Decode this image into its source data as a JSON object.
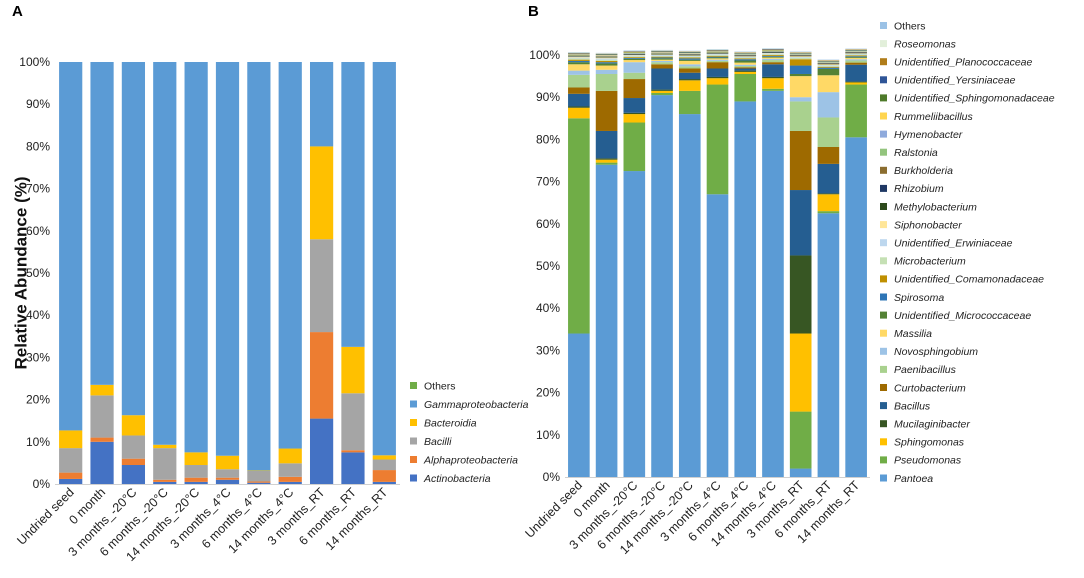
{
  "chart_data": [
    {
      "panel": "A",
      "type": "bar",
      "stacked": true,
      "ylabel": "Relative Abundance (%)",
      "xlabel": "",
      "ylim": [
        0,
        100
      ],
      "yticks": [
        "0%",
        "10%",
        "20%",
        "30%",
        "40%",
        "50%",
        "60%",
        "70%",
        "80%",
        "90%",
        "100%"
      ],
      "categories": [
        "Undried seed",
        "0 month",
        "3 months_-20°C",
        "6 months_-20°C",
        "14 months_-20°C",
        "3 months_4°C",
        "6 months_4°C",
        "14 months_4°C",
        "3 months_RT",
        "6 months_RT",
        "14 months_RT"
      ],
      "legend_position": "right",
      "series": [
        {
          "name": "Actinobacteria",
          "color": "#4472C4",
          "italic": true,
          "values": [
            1.2,
            10,
            4.5,
            0.5,
            0.5,
            1,
            0.3,
            0.5,
            15.5,
            7.5,
            0.5
          ]
        },
        {
          "name": "Alphaproteobacteria",
          "color": "#ED7D31",
          "italic": true,
          "values": [
            1.5,
            1,
            1.5,
            0.5,
            1,
            0.5,
            0.3,
            1.2,
            20.5,
            0.5,
            2.8
          ]
        },
        {
          "name": "Bacilli",
          "color": "#A5A5A5",
          "italic": true,
          "values": [
            5.8,
            10,
            5.5,
            7.5,
            3,
            2,
            2.5,
            3.2,
            22,
            13.5,
            2.5
          ]
        },
        {
          "name": "Bacteroidia",
          "color": "#FFC000",
          "italic": true,
          "values": [
            4.2,
            2.5,
            4.8,
            0.8,
            3,
            3.2,
            0.1,
            3.5,
            22,
            11,
            1
          ]
        },
        {
          "name": "Gammaproteobacteria",
          "color": "#5B9BD5",
          "italic": true,
          "values": [
            87.3,
            76.5,
            83.7,
            90.7,
            92.5,
            93.3,
            96.8,
            91.6,
            20,
            67.5,
            93.2
          ]
        },
        {
          "name": "Others",
          "color": "#70AD47",
          "italic": false,
          "values": [
            0,
            0,
            0,
            0,
            0,
            0,
            0,
            0,
            0,
            0,
            0
          ]
        }
      ]
    },
    {
      "panel": "B",
      "type": "bar",
      "stacked": true,
      "ylabel": "",
      "xlabel": "",
      "ylim": [
        0,
        100
      ],
      "yticks": [
        "0%",
        "10%",
        "20%",
        "30%",
        "40%",
        "50%",
        "60%",
        "70%",
        "80%",
        "90%",
        "100%"
      ],
      "categories": [
        "Undried seed",
        "0 month",
        "3 months_-20°C",
        "6 months_-20°C",
        "14 months_-20°C",
        "3 months_4°C",
        "6 months_4°C",
        "14 months_4°C",
        "3 months_RT",
        "6 months_RT",
        "14 months_RT"
      ],
      "legend_position": "right",
      "series": [
        {
          "name": "Pantoea",
          "color": "#5B9BD5",
          "italic": true,
          "values": [
            34,
            74,
            72.5,
            90.5,
            86,
            67,
            89,
            91.5,
            2,
            62.5,
            80.5
          ]
        },
        {
          "name": "Pseudomonas",
          "color": "#70AD47",
          "italic": true,
          "values": [
            51,
            0.5,
            11.5,
            0.5,
            5.5,
            26,
            6.5,
            0.5,
            13.5,
            0.5,
            12.5
          ]
        },
        {
          "name": "Sphingomonas",
          "color": "#FFC000",
          "italic": true,
          "values": [
            2.5,
            0.7,
            2,
            0.5,
            2.5,
            1.5,
            0.5,
            2.5,
            18.5,
            4,
            0.5
          ]
        },
        {
          "name": "Mucilaginibacter",
          "color": "#375623",
          "italic": true,
          "values": [
            0.3,
            0.3,
            0.3,
            0.3,
            0.3,
            0.3,
            0.3,
            0.3,
            18.5,
            0.2,
            0.2
          ]
        },
        {
          "name": "Bacillus",
          "color": "#255E91",
          "italic": true,
          "values": [
            3,
            6.5,
            3.5,
            5,
            1.5,
            2,
            0.5,
            3,
            15.5,
            7,
            4
          ]
        },
        {
          "name": "Curtobacterium",
          "color": "#9E6A00",
          "italic": true,
          "values": [
            1.5,
            9.5,
            4.5,
            1,
            1,
            1.5,
            0.3,
            0.5,
            14,
            4,
            0.5
          ]
        },
        {
          "name": "Paenibacillus",
          "color": "#A9D18E",
          "italic": true,
          "values": [
            3,
            4,
            1.5,
            0.5,
            0.5,
            0.3,
            0.3,
            0.5,
            7,
            7,
            0.5
          ]
        },
        {
          "name": "Novosphingobium",
          "color": "#9DC3E6",
          "italic": true,
          "values": [
            1,
            1,
            2.5,
            0.3,
            0.5,
            0.3,
            0.3,
            0.3,
            1,
            6,
            0.3
          ]
        },
        {
          "name": "Massilia",
          "color": "#FFD966",
          "italic": true,
          "values": [
            1.5,
            1,
            0.5,
            0.3,
            0.8,
            0.3,
            0.5,
            0.3,
            5,
            4,
            0.3
          ]
        },
        {
          "name": "Unidentified_Micrococcaceae",
          "color": "#548235",
          "italic": true,
          "values": [
            0.5,
            0.5,
            0.3,
            0.3,
            0.3,
            0.2,
            0.5,
            0.2,
            0.5,
            1.5,
            0.2
          ]
        },
        {
          "name": "Spirosoma",
          "color": "#2E75B6",
          "italic": true,
          "values": [
            0.3,
            0.3,
            0.2,
            0.2,
            0.3,
            0.2,
            0.3,
            0.2,
            2,
            0.3,
            0.2
          ]
        },
        {
          "name": "Unidentified_Comamonadaceae",
          "color": "#BF8F00",
          "italic": true,
          "values": [
            0.3,
            0.3,
            0.2,
            0.2,
            0.2,
            0.2,
            0.2,
            0.2,
            1.5,
            0.2,
            0.2
          ]
        },
        {
          "name": "Microbacterium",
          "color": "#C5E0B4",
          "italic": true,
          "values": [
            0.3,
            0.3,
            0.2,
            0.2,
            0.2,
            0.2,
            0.2,
            0.2,
            0.3,
            0.2,
            0.2
          ]
        },
        {
          "name": "Unidentified_Erwiniaceae",
          "color": "#BDD7EE",
          "italic": true,
          "values": [
            0.2,
            0.3,
            0.2,
            0.2,
            0.2,
            0.2,
            0.2,
            0.2,
            0.2,
            0.2,
            0.2
          ]
        },
        {
          "name": "Siphonobacter",
          "color": "#FFE699",
          "italic": true,
          "values": [
            0.2,
            0.2,
            0.1,
            0.1,
            0.1,
            0.1,
            0.1,
            0.1,
            0.2,
            0.2,
            0.1
          ]
        },
        {
          "name": "Methylobacterium",
          "color": "#2D4A1C",
          "italic": true,
          "values": [
            0.1,
            0.1,
            0.1,
            0.1,
            0.1,
            0.1,
            0.1,
            0.1,
            0.1,
            0.1,
            0.1
          ]
        },
        {
          "name": "Rhizobium",
          "color": "#1F3864",
          "italic": true,
          "values": [
            0.1,
            0.1,
            0.1,
            0.1,
            0.1,
            0.1,
            0.1,
            0.1,
            0.1,
            0.1,
            0.1
          ]
        },
        {
          "name": "Burkholderia",
          "color": "#8B6D2F",
          "italic": true,
          "values": [
            0.1,
            0.1,
            0.1,
            0.1,
            0.1,
            0.1,
            0.1,
            0.1,
            0.1,
            0.1,
            0.1
          ]
        },
        {
          "name": "Ralstonia",
          "color": "#93C47D",
          "italic": true,
          "values": [
            0.1,
            0.1,
            0.1,
            0.1,
            0.1,
            0.1,
            0.1,
            0.1,
            0.1,
            0.1,
            0.1
          ]
        },
        {
          "name": "Hymenobacter",
          "color": "#8FAADC",
          "italic": true,
          "values": [
            0.1,
            0.1,
            0.1,
            0.1,
            0.1,
            0.1,
            0.1,
            0.1,
            0.1,
            0.1,
            0.1
          ]
        },
        {
          "name": "Rummeliibacillus",
          "color": "#FFD54F",
          "italic": true,
          "values": [
            0.1,
            0.1,
            0.1,
            0.1,
            0.1,
            0.1,
            0.1,
            0.1,
            0.1,
            0.1,
            0.1
          ]
        },
        {
          "name": "Unidentified_Sphingomonadaceae",
          "color": "#4E7A2A",
          "italic": true,
          "values": [
            0.1,
            0.1,
            0.1,
            0.1,
            0.1,
            0.1,
            0.1,
            0.1,
            0.1,
            0.1,
            0.1
          ]
        },
        {
          "name": "Unidentified_Yersiniaceae",
          "color": "#2F5597",
          "italic": true,
          "values": [
            0.1,
            0.1,
            0.1,
            0.1,
            0.1,
            0.1,
            0.1,
            0.1,
            0.1,
            0.1,
            0.1
          ]
        },
        {
          "name": "Unidentified_Planococcaceae",
          "color": "#B07D1A",
          "italic": true,
          "values": [
            0.1,
            0.1,
            0.1,
            0.1,
            0.1,
            0.1,
            0.1,
            0.1,
            0.1,
            0.1,
            0.1
          ]
        },
        {
          "name": "Roseomonas",
          "color": "#E2EFDA",
          "italic": true,
          "values": [
            0.1,
            0.1,
            0.1,
            0.1,
            0.1,
            0.1,
            0.1,
            0.1,
            0.1,
            0.1,
            0.1
          ]
        },
        {
          "name": "Others",
          "color": "#9BC2E6",
          "italic": false,
          "values": [
            0.1,
            0.1,
            0.1,
            0.1,
            0.1,
            0.1,
            0.1,
            0.1,
            0.1,
            0.1,
            0.1
          ]
        }
      ]
    }
  ]
}
